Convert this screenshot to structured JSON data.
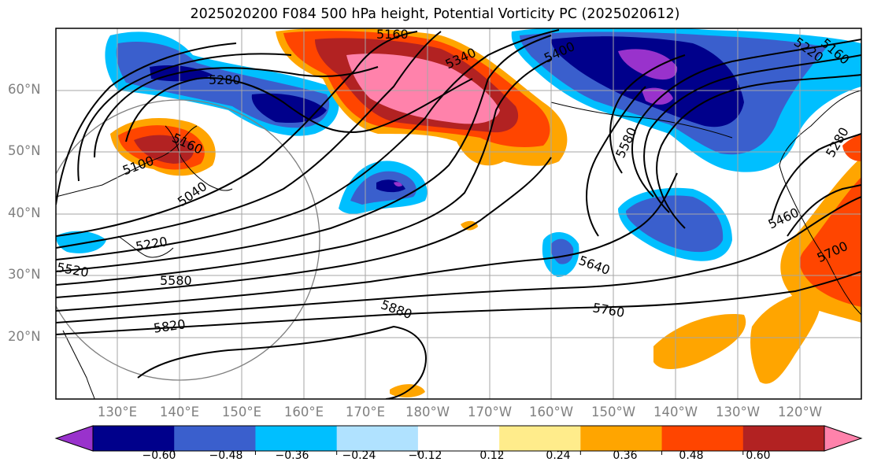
{
  "title": "2025020200 F084 500 hPa height, Potential Vorticity PC (2025020612)",
  "lat_labels": [
    "60°N",
    "50°N",
    "40°N",
    "30°N",
    "20°N"
  ],
  "lon_labels": [
    "130°E",
    "140°E",
    "150°E",
    "160°E",
    "170°E",
    "180°W",
    "170°W",
    "160°W",
    "150°W",
    "140°W",
    "130°W",
    "120°W"
  ],
  "contour_labels": [
    "5160",
    "5340",
    "5400",
    "5280",
    "5100",
    "5160",
    "5040",
    "5220",
    "5520",
    "5580",
    "5820",
    "5880",
    "5760",
    "5640",
    "5580",
    "5460",
    "5280",
    "5700",
    "5220",
    "5160"
  ],
  "colorbar": {
    "tick_labels": [
      "−0.60",
      "−0.48",
      "−0.36",
      "−0.24",
      "−0.12",
      "0.12",
      "0.24",
      "0.36",
      "0.48",
      "0.60"
    ],
    "colors": [
      "#9932cc",
      "#00008b",
      "#3a5fcd",
      "#00bfff",
      "#b0e2ff",
      "#ffffff",
      "#ffec8b",
      "#ffa500",
      "#ff4500",
      "#b22222",
      "#ff82ab"
    ]
  },
  "colors": {
    "grid": "#a6a6a6",
    "axis_label": "#808080",
    "contour": "#000000",
    "circle": "#808080"
  }
}
